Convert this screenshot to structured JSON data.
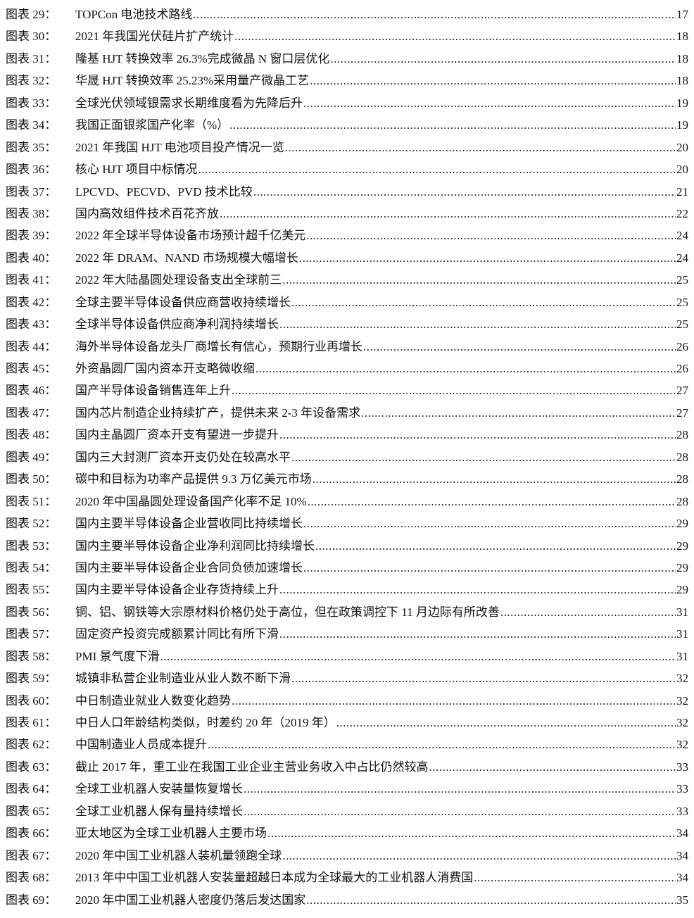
{
  "entries": [
    {
      "label": "图表 29：",
      "title": "TOPCon 电池技术路线",
      "page": "17"
    },
    {
      "label": "图表 30：",
      "title": "2021 年我国光伏硅片扩产统计",
      "page": "18"
    },
    {
      "label": "图表 31：",
      "title": "隆基 HJT 转换效率 26.3%完成微晶 N 窗口层优化",
      "page": "18"
    },
    {
      "label": "图表 32：",
      "title": "华晟 HJT 转换效率 25.23%采用量产微晶工艺",
      "page": "18"
    },
    {
      "label": "图表 33：",
      "title": "全球光伏领域银需求长期维度看为先降后升",
      "page": "19"
    },
    {
      "label": "图表 34：",
      "title": "我国正面银浆国产化率（%）",
      "page": "19"
    },
    {
      "label": "图表 35：",
      "title": "2021 年我国 HJT 电池项目投产情况一览",
      "page": "20"
    },
    {
      "label": "图表 36：",
      "title": "核心 HJT 项目中标情况",
      "page": "20"
    },
    {
      "label": "图表 37：",
      "title": "LPCVD、PECVD、PVD 技术比较",
      "page": "21"
    },
    {
      "label": "图表 38：",
      "title": "国内高效组件技术百花齐放",
      "page": "22"
    },
    {
      "label": "图表 39：",
      "title": "2022 年全球半导体设备市场预计超千亿美元",
      "page": "24"
    },
    {
      "label": "图表 40：",
      "title": "2022 年 DRAM、NAND 市场规模大幅增长",
      "page": "24"
    },
    {
      "label": "图表 41：",
      "title": "2022 年大陆晶圆处理设备支出全球前三",
      "page": "25"
    },
    {
      "label": "图表 42：",
      "title": "全球主要半导体设备供应商营收持续增长",
      "page": "25"
    },
    {
      "label": "图表 43：",
      "title": "全球半导体设备供应商净利润持续增长",
      "page": "25"
    },
    {
      "label": "图表 44：",
      "title": "海外半导体设备龙头厂商增长有信心，预期行业再增长",
      "page": "26"
    },
    {
      "label": "图表 45：",
      "title": "外资晶圆厂国内资本开支略微收缩",
      "page": "26"
    },
    {
      "label": "图表 46：",
      "title": "国产半导体设备销售连年上升",
      "page": "27"
    },
    {
      "label": "图表 47：",
      "title": "国内芯片制造企业持续扩产，提供未来 2-3 年设备需求",
      "page": "27"
    },
    {
      "label": "图表 48：",
      "title": "国内主晶圆厂资本开支有望进一步提升",
      "page": "28"
    },
    {
      "label": "图表 49：",
      "title": "国内三大封测厂资本开支仍处在较高水平",
      "page": "28"
    },
    {
      "label": "图表 50：",
      "title": "碳中和目标为功率产品提供 9.3 万亿美元市场",
      "page": "28"
    },
    {
      "label": "图表 51：",
      "title": "2020 年中国晶圆处理设备国产化率不足 10%",
      "page": "28"
    },
    {
      "label": "图表 52：",
      "title": "国内主要半导体设备企业营收同比持续增长",
      "page": "29"
    },
    {
      "label": "图表 53：",
      "title": "国内主要半导体设备企业净利润同比持续增长",
      "page": "29"
    },
    {
      "label": "图表 54：",
      "title": "国内主要半导体设备企业合同负债加速增长",
      "page": "29"
    },
    {
      "label": "图表 55：",
      "title": "国内主要半导体设备企业存货持续上升",
      "page": "29"
    },
    {
      "label": "图表 56：",
      "title": "铜、铝、钢铁等大宗原材料价格仍处于高位，但在政策调控下 11 月边际有所改善",
      "page": "31"
    },
    {
      "label": "图表 57：",
      "title": "固定资产投资完成额累计同比有所下滑",
      "page": "31"
    },
    {
      "label": "图表 58：",
      "title": "PMI 景气度下滑",
      "page": "31"
    },
    {
      "label": "图表 59：",
      "title": "城镇非私营企业制造业从业人数不断下滑",
      "page": "32"
    },
    {
      "label": "图表 60：",
      "title": "中日制造业就业人数变化趋势",
      "page": "32"
    },
    {
      "label": "图表 61：",
      "title": "中日人口年龄结构类似，时差约 20 年（2019 年）",
      "page": "32"
    },
    {
      "label": "图表 62：",
      "title": "中国制造业人员成本提升",
      "page": "32"
    },
    {
      "label": "图表 63：",
      "title": "截止 2017 年，重工业在我国工业企业主营业务收入中占比仍然较高",
      "page": "33"
    },
    {
      "label": "图表 64：",
      "title": "全球工业机器人安装量恢复增长",
      "page": "33"
    },
    {
      "label": "图表 65：",
      "title": "全球工业机器人保有量持续增长",
      "page": "33"
    },
    {
      "label": "图表 66：",
      "title": "亚太地区为全球工业机器人主要市场",
      "page": "34"
    },
    {
      "label": "图表 67：",
      "title": "2020 年中国工业机器人装机量领跑全球",
      "page": "34"
    },
    {
      "label": "图表 68：",
      "title": "2013 年中中国工业机器人安装量超越日本成为全球最大的工业机器人消费国",
      "page": "34"
    },
    {
      "label": "图表 69：",
      "title": "2020 年中国工业机器人密度仍落后发达国家",
      "page": "35"
    }
  ]
}
